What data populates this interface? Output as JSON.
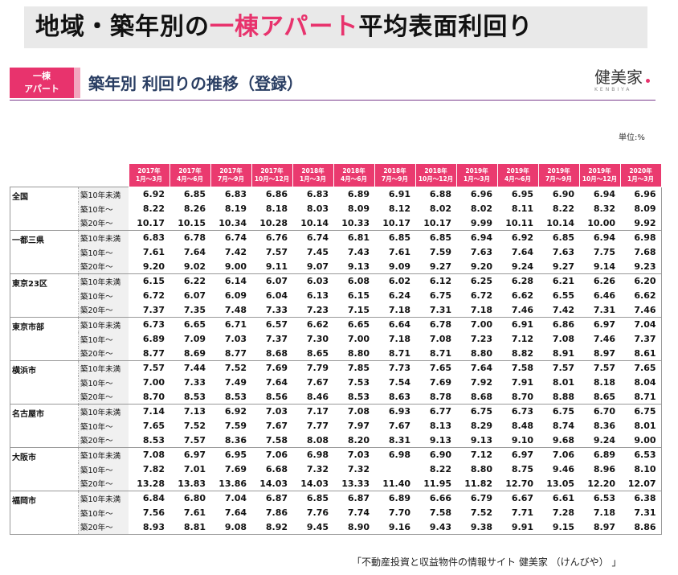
{
  "title": {
    "part1": "地域・築年別の",
    "accent": "一棟アパート",
    "part2": "平均表面利回り"
  },
  "header": {
    "tag_line1": "一棟",
    "tag_line2": "アパート",
    "subtitle": "築年別 利回りの推移（登録）",
    "logo_text": "健美家",
    "logo_sub": "KENBIYA"
  },
  "unit_label": "単位:%",
  "colors": {
    "accent": "#e8336d",
    "header_fill": "#ea3a6f",
    "title_navy": "#2a3e63"
  },
  "table": {
    "columns": [
      [
        "2017年",
        "1月～3月"
      ],
      [
        "2017年",
        "4月～6月"
      ],
      [
        "2017年",
        "7月～9月"
      ],
      [
        "2017年",
        "10月～12月"
      ],
      [
        "2018年",
        "1月～3月"
      ],
      [
        "2018年",
        "4月～6月"
      ],
      [
        "2018年",
        "7月～9月"
      ],
      [
        "2018年",
        "10月～12月"
      ],
      [
        "2019年",
        "1月～3月"
      ],
      [
        "2019年",
        "4月～6月"
      ],
      [
        "2019年",
        "7月～9月"
      ],
      [
        "2019年",
        "10月～12月"
      ],
      [
        "2020年",
        "1月～3月"
      ]
    ],
    "regions": [
      {
        "name": "全国",
        "rows": [
          {
            "label": "築10年未満",
            "values": [
              "6.92",
              "6.85",
              "6.83",
              "6.86",
              "6.83",
              "6.89",
              "6.91",
              "6.88",
              "6.96",
              "6.95",
              "6.90",
              "6.94",
              "6.96"
            ]
          },
          {
            "label": "築10年～",
            "values": [
              "8.22",
              "8.26",
              "8.19",
              "8.18",
              "8.03",
              "8.09",
              "8.12",
              "8.02",
              "8.02",
              "8.11",
              "8.22",
              "8.32",
              "8.09"
            ]
          },
          {
            "label": "築20年～",
            "values": [
              "10.17",
              "10.15",
              "10.34",
              "10.28",
              "10.14",
              "10.33",
              "10.17",
              "10.17",
              "9.99",
              "10.11",
              "10.14",
              "10.00",
              "9.92"
            ]
          }
        ]
      },
      {
        "name": "一都三県",
        "rows": [
          {
            "label": "築10年未満",
            "values": [
              "6.83",
              "6.78",
              "6.74",
              "6.76",
              "6.74",
              "6.81",
              "6.85",
              "6.85",
              "6.94",
              "6.92",
              "6.85",
              "6.94",
              "6.98"
            ]
          },
          {
            "label": "築10年～",
            "values": [
              "7.61",
              "7.64",
              "7.42",
              "7.57",
              "7.45",
              "7.43",
              "7.61",
              "7.59",
              "7.63",
              "7.64",
              "7.63",
              "7.75",
              "7.68"
            ]
          },
          {
            "label": "築20年～",
            "values": [
              "9.20",
              "9.02",
              "9.00",
              "9.11",
              "9.07",
              "9.13",
              "9.09",
              "9.27",
              "9.20",
              "9.24",
              "9.27",
              "9.14",
              "9.23"
            ]
          }
        ]
      },
      {
        "name": "東京23区",
        "rows": [
          {
            "label": "築10年未満",
            "values": [
              "6.15",
              "6.22",
              "6.14",
              "6.07",
              "6.03",
              "6.08",
              "6.02",
              "6.12",
              "6.25",
              "6.28",
              "6.21",
              "6.26",
              "6.20"
            ]
          },
          {
            "label": "築10年～",
            "values": [
              "6.72",
              "6.07",
              "6.09",
              "6.04",
              "6.13",
              "6.15",
              "6.24",
              "6.75",
              "6.72",
              "6.62",
              "6.55",
              "6.46",
              "6.62"
            ]
          },
          {
            "label": "築20年～",
            "values": [
              "7.37",
              "7.35",
              "7.48",
              "7.33",
              "7.23",
              "7.15",
              "7.18",
              "7.31",
              "7.18",
              "7.46",
              "7.42",
              "7.31",
              "7.46"
            ]
          }
        ]
      },
      {
        "name": "東京市部",
        "rows": [
          {
            "label": "築10年未満",
            "values": [
              "6.73",
              "6.65",
              "6.71",
              "6.57",
              "6.62",
              "6.65",
              "6.64",
              "6.78",
              "7.00",
              "6.91",
              "6.86",
              "6.97",
              "7.04"
            ]
          },
          {
            "label": "築10年～",
            "values": [
              "6.89",
              "7.09",
              "7.03",
              "7.37",
              "7.30",
              "7.00",
              "7.18",
              "7.08",
              "7.23",
              "7.12",
              "7.08",
              "7.46",
              "7.37"
            ]
          },
          {
            "label": "築20年～",
            "values": [
              "8.77",
              "8.69",
              "8.77",
              "8.68",
              "8.65",
              "8.80",
              "8.71",
              "8.71",
              "8.80",
              "8.82",
              "8.91",
              "8.97",
              "8.61"
            ]
          }
        ]
      },
      {
        "name": "横浜市",
        "rows": [
          {
            "label": "築10年未満",
            "values": [
              "7.57",
              "7.44",
              "7.52",
              "7.69",
              "7.79",
              "7.85",
              "7.73",
              "7.65",
              "7.64",
              "7.58",
              "7.57",
              "7.57",
              "7.65"
            ]
          },
          {
            "label": "築10年～",
            "values": [
              "7.00",
              "7.33",
              "7.49",
              "7.64",
              "7.67",
              "7.53",
              "7.54",
              "7.69",
              "7.92",
              "7.91",
              "8.01",
              "8.18",
              "8.04"
            ]
          },
          {
            "label": "築20年～",
            "values": [
              "8.70",
              "8.53",
              "8.53",
              "8.56",
              "8.46",
              "8.53",
              "8.63",
              "8.78",
              "8.68",
              "8.70",
              "8.88",
              "8.65",
              "8.71"
            ]
          }
        ]
      },
      {
        "name": "名古屋市",
        "rows": [
          {
            "label": "築10年未満",
            "values": [
              "7.14",
              "7.13",
              "6.92",
              "7.03",
              "7.17",
              "7.08",
              "6.93",
              "6.77",
              "6.75",
              "6.73",
              "6.75",
              "6.70",
              "6.75"
            ]
          },
          {
            "label": "築10年～",
            "values": [
              "7.65",
              "7.52",
              "7.59",
              "7.67",
              "7.77",
              "7.97",
              "7.67",
              "8.13",
              "8.29",
              "8.48",
              "8.74",
              "8.36",
              "8.01"
            ]
          },
          {
            "label": "築20年～",
            "values": [
              "8.53",
              "7.57",
              "8.36",
              "7.58",
              "8.08",
              "8.20",
              "8.31",
              "9.13",
              "9.13",
              "9.10",
              "9.68",
              "9.24",
              "9.00"
            ]
          }
        ]
      },
      {
        "name": "大阪市",
        "rows": [
          {
            "label": "築10年未満",
            "values": [
              "7.08",
              "6.97",
              "6.95",
              "7.06",
              "6.98",
              "7.03",
              "6.98",
              "6.90",
              "7.12",
              "6.97",
              "7.06",
              "6.89",
              "6.53"
            ]
          },
          {
            "label": "築10年～",
            "values": [
              "7.82",
              "7.01",
              "7.69",
              "6.68",
              "7.32",
              "7.32",
              "",
              "8.22",
              "8.80",
              "8.75",
              "9.46",
              "8.96",
              "8.10"
            ]
          },
          {
            "label": "築20年～",
            "values": [
              "13.28",
              "13.83",
              "13.86",
              "14.03",
              "14.03",
              "13.33",
              "11.40",
              "11.95",
              "11.82",
              "12.70",
              "13.05",
              "12.20",
              "12.07"
            ]
          }
        ]
      },
      {
        "name": "福岡市",
        "rows": [
          {
            "label": "築10年未満",
            "values": [
              "6.84",
              "6.80",
              "7.04",
              "6.87",
              "6.85",
              "6.87",
              "6.89",
              "6.66",
              "6.79",
              "6.67",
              "6.61",
              "6.53",
              "6.38"
            ]
          },
          {
            "label": "築10年～",
            "values": [
              "7.56",
              "7.61",
              "7.64",
              "7.86",
              "7.76",
              "7.74",
              "7.70",
              "7.58",
              "7.52",
              "7.71",
              "7.28",
              "7.18",
              "7.31"
            ]
          },
          {
            "label": "築20年～",
            "values": [
              "8.93",
              "8.81",
              "9.08",
              "8.92",
              "9.45",
              "8.90",
              "9.16",
              "9.43",
              "9.38",
              "9.91",
              "9.15",
              "8.97",
              "8.86"
            ]
          }
        ]
      }
    ]
  },
  "footer": "「不動産投資と収益物件の情報サイト 健美家 （けんびや） 」"
}
